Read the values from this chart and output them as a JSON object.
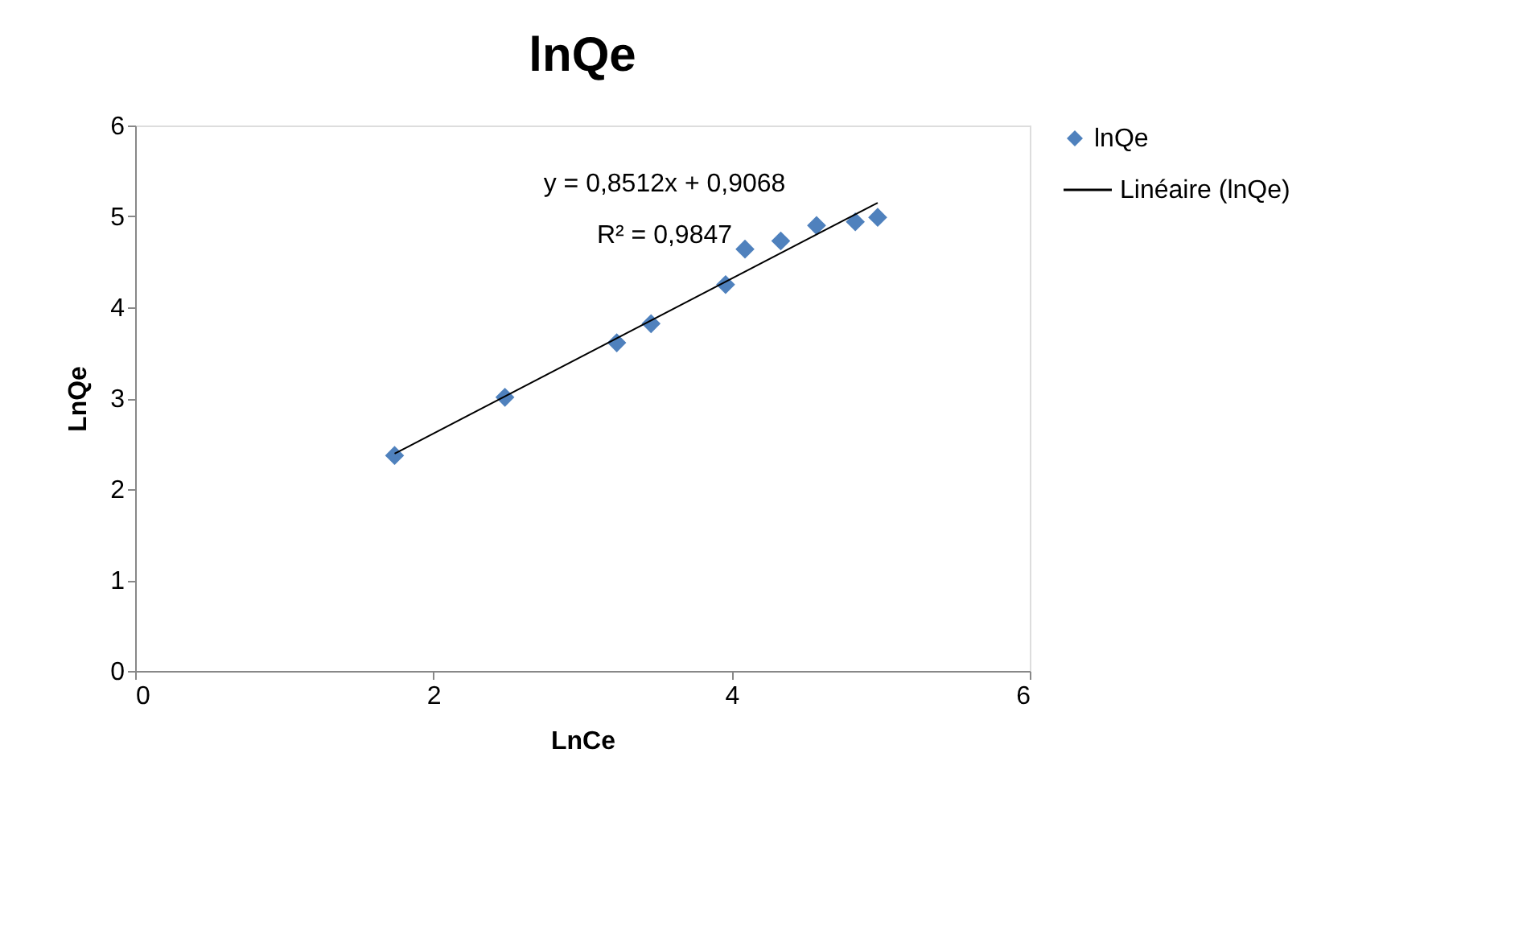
{
  "chart_data": {
    "type": "scatter",
    "title": "lnQe",
    "xlabel": "LnCe",
    "ylabel": "LnQe",
    "xlim": [
      0,
      6
    ],
    "xticks": [
      0,
      2,
      4,
      6
    ],
    "ylim": [
      0,
      6
    ],
    "yticks": [
      0,
      1,
      2,
      3,
      4,
      5,
      6
    ],
    "grid": false,
    "legend": "right",
    "series": [
      {
        "name": "lnQe",
        "marker": "diamond",
        "color": "#4f81bd",
        "x": [
          1.74,
          2.48,
          3.23,
          3.46,
          3.96,
          4.09,
          4.33,
          4.57,
          4.83,
          4.98
        ],
        "values": [
          2.37,
          3.01,
          3.61,
          3.82,
          4.25,
          4.64,
          4.73,
          4.9,
          4.94,
          4.99
        ]
      },
      {
        "name": "Linéaire (lnQe)",
        "type": "line",
        "color": "#000000",
        "line_style": "solid",
        "x": [
          1.74,
          4.98
        ],
        "values": [
          2.39,
          5.15
        ]
      }
    ],
    "annotations": [
      "y = 0,8512x + 0,9068",
      "R² = 0,9847"
    ]
  }
}
